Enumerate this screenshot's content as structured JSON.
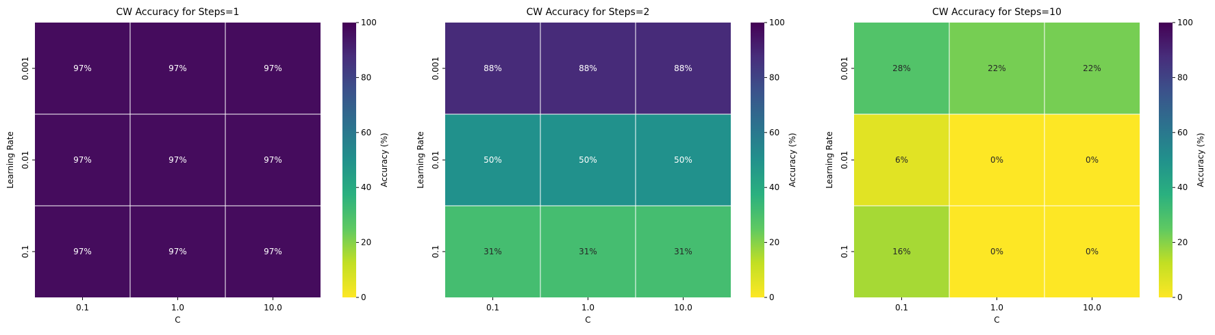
{
  "chart_data": [
    {
      "type": "heatmap",
      "title": "CW Accuracy for Steps=1",
      "xlabel": "C",
      "ylabel": "Learning Rate",
      "x_categories": [
        "0.1",
        "1.0",
        "10.0"
      ],
      "y_categories": [
        "0.001",
        "0.01",
        "0.1"
      ],
      "values": [
        [
          97,
          97,
          97
        ],
        [
          97,
          97,
          97
        ],
        [
          97,
          97,
          97
        ]
      ],
      "value_format": "percent",
      "colorbar": {
        "label": "Accuracy (%)",
        "range": [
          0,
          100
        ],
        "ticks": [
          0,
          20,
          40,
          60,
          80,
          100
        ]
      },
      "colormap": "viridis_r"
    },
    {
      "type": "heatmap",
      "title": "CW Accuracy for Steps=2",
      "xlabel": "C",
      "ylabel": "Learning Rate",
      "x_categories": [
        "0.1",
        "1.0",
        "10.0"
      ],
      "y_categories": [
        "0.001",
        "0.01",
        "0.1"
      ],
      "values": [
        [
          88,
          88,
          88
        ],
        [
          50,
          50,
          50
        ],
        [
          31,
          31,
          31
        ]
      ],
      "value_format": "percent",
      "colorbar": {
        "label": "Accuracy (%)",
        "range": [
          0,
          100
        ],
        "ticks": [
          0,
          20,
          40,
          60,
          80,
          100
        ]
      },
      "colormap": "viridis_r"
    },
    {
      "type": "heatmap",
      "title": "CW Accuracy for Steps=10",
      "xlabel": "C",
      "ylabel": "Learning Rate",
      "x_categories": [
        "0.1",
        "1.0",
        "10.0"
      ],
      "y_categories": [
        "0.001",
        "0.01",
        "0.1"
      ],
      "values": [
        [
          28,
          22,
          22
        ],
        [
          6,
          0,
          0
        ],
        [
          16,
          0,
          0
        ]
      ],
      "value_format": "percent",
      "colorbar": {
        "label": "Accuracy (%)",
        "range": [
          0,
          100
        ],
        "ticks": [
          0,
          20,
          40,
          60,
          80,
          100
        ]
      },
      "colormap": "viridis_r"
    }
  ]
}
